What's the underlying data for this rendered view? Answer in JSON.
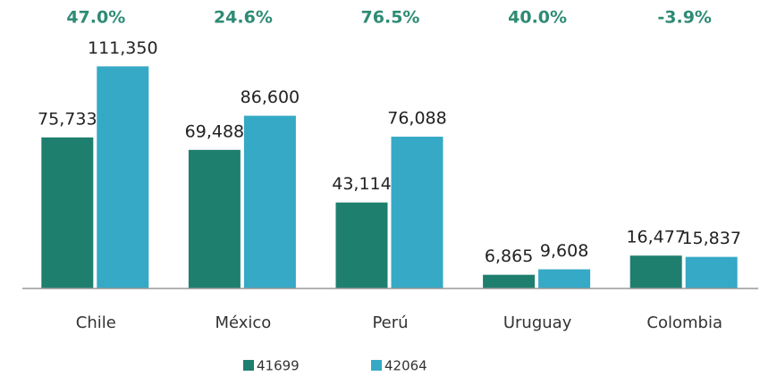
{
  "chart_data": {
    "type": "bar",
    "categories": [
      "Chile",
      "México",
      "Perú",
      "Uruguay",
      "Colombia"
    ],
    "annotations": [
      "47.0%",
      "24.6%",
      "76.5%",
      "40.0%",
      "-3.9%"
    ],
    "series": [
      {
        "name": "41699",
        "color": "#1f7f6f",
        "values": [
          75733,
          69488,
          43114,
          6865,
          16477
        ],
        "value_labels": [
          "75,733",
          "69,488",
          "43,114",
          "6,865",
          "16,477"
        ]
      },
      {
        "name": "42064",
        "color": "#35a9c6",
        "values": [
          111350,
          86600,
          76088,
          9608,
          15837
        ],
        "value_labels": [
          "111,350",
          "86,600",
          "76,088",
          "9,608",
          "15,837"
        ]
      }
    ],
    "ylim": [
      0,
      120000
    ]
  }
}
